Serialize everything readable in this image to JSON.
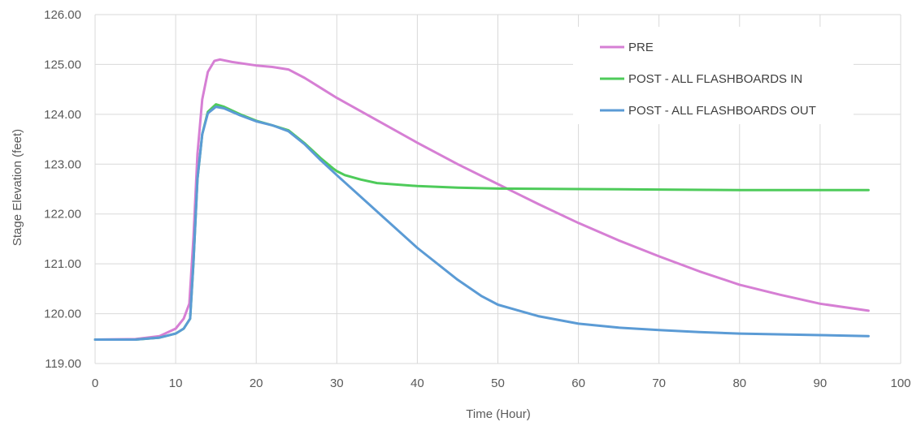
{
  "chart_data": {
    "type": "line",
    "title": "",
    "xlabel": "Time (Hour)",
    "ylabel": "Stage Elevation (feet)",
    "xlim": [
      0,
      100
    ],
    "ylim": [
      119,
      126
    ],
    "x_ticks": [
      0,
      10,
      20,
      30,
      40,
      50,
      60,
      70,
      80,
      90,
      100
    ],
    "y_ticks": [
      119,
      120,
      121,
      122,
      123,
      124,
      125,
      126
    ],
    "y_tick_labels": [
      "119.00",
      "120.00",
      "121.00",
      "122.00",
      "123.00",
      "124.00",
      "125.00",
      "126.00"
    ],
    "grid": true,
    "legend_position": "top-right",
    "series": [
      {
        "name": "PRE",
        "color": "#d67fd4",
        "points": [
          [
            0,
            119.48
          ],
          [
            5,
            119.49
          ],
          [
            8,
            119.55
          ],
          [
            10,
            119.7
          ],
          [
            11,
            119.9
          ],
          [
            11.7,
            120.2
          ],
          [
            12.2,
            121.5
          ],
          [
            12.7,
            123.2
          ],
          [
            13.3,
            124.3
          ],
          [
            14,
            124.85
          ],
          [
            14.8,
            125.07
          ],
          [
            15.5,
            125.1
          ],
          [
            17,
            125.05
          ],
          [
            20,
            124.98
          ],
          [
            22,
            124.95
          ],
          [
            24,
            124.9
          ],
          [
            26,
            124.73
          ],
          [
            28,
            124.53
          ],
          [
            30,
            124.33
          ],
          [
            35,
            123.88
          ],
          [
            40,
            123.43
          ],
          [
            45,
            123
          ],
          [
            50,
            122.6
          ],
          [
            55,
            122.2
          ],
          [
            60,
            121.82
          ],
          [
            65,
            121.47
          ],
          [
            70,
            121.15
          ],
          [
            75,
            120.85
          ],
          [
            80,
            120.58
          ],
          [
            85,
            120.38
          ],
          [
            90,
            120.2
          ],
          [
            96,
            120.06
          ]
        ]
      },
      {
        "name": "POST - ALL FLASHBOARDS IN",
        "color": "#4ecb5a",
        "points": [
          [
            0,
            119.48
          ],
          [
            5,
            119.48
          ],
          [
            8,
            119.52
          ],
          [
            10,
            119.6
          ],
          [
            11,
            119.7
          ],
          [
            11.8,
            119.9
          ],
          [
            12.2,
            121
          ],
          [
            12.7,
            122.7
          ],
          [
            13.3,
            123.6
          ],
          [
            14,
            124.05
          ],
          [
            15,
            124.2
          ],
          [
            16,
            124.15
          ],
          [
            18,
            124
          ],
          [
            20,
            123.87
          ],
          [
            22,
            123.78
          ],
          [
            24,
            123.68
          ],
          [
            26,
            123.42
          ],
          [
            28,
            123.12
          ],
          [
            29.5,
            122.92
          ],
          [
            30,
            122.86
          ],
          [
            31,
            122.78
          ],
          [
            33,
            122.69
          ],
          [
            35,
            122.62
          ],
          [
            40,
            122.56
          ],
          [
            45,
            122.53
          ],
          [
            50,
            122.51
          ],
          [
            60,
            122.5
          ],
          [
            70,
            122.49
          ],
          [
            80,
            122.48
          ],
          [
            90,
            122.48
          ],
          [
            96,
            122.48
          ]
        ]
      },
      {
        "name": "POST - ALL FLASHBOARDS OUT",
        "color": "#5b9bd5",
        "points": [
          [
            0,
            119.48
          ],
          [
            5,
            119.48
          ],
          [
            8,
            119.52
          ],
          [
            10,
            119.6
          ],
          [
            11,
            119.7
          ],
          [
            11.8,
            119.9
          ],
          [
            12.2,
            121
          ],
          [
            12.7,
            122.7
          ],
          [
            13.3,
            123.6
          ],
          [
            14,
            124.02
          ],
          [
            15,
            124.15
          ],
          [
            16,
            124.12
          ],
          [
            18,
            123.98
          ],
          [
            20,
            123.86
          ],
          [
            22,
            123.78
          ],
          [
            24,
            123.66
          ],
          [
            26,
            123.4
          ],
          [
            28,
            123.08
          ],
          [
            30,
            122.78
          ],
          [
            35,
            122.05
          ],
          [
            40,
            121.32
          ],
          [
            45,
            120.68
          ],
          [
            48,
            120.35
          ],
          [
            50,
            120.18
          ],
          [
            55,
            119.95
          ],
          [
            60,
            119.8
          ],
          [
            65,
            119.72
          ],
          [
            70,
            119.67
          ],
          [
            75,
            119.63
          ],
          [
            80,
            119.6
          ],
          [
            90,
            119.57
          ],
          [
            96,
            119.55
          ]
        ]
      }
    ]
  }
}
